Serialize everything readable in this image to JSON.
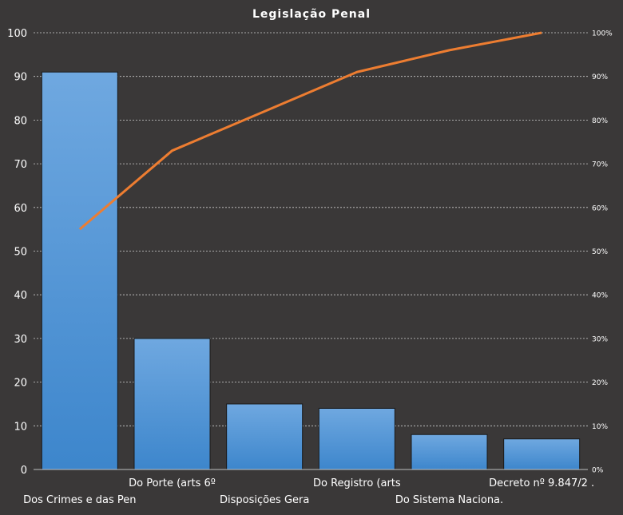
{
  "chart_data": {
    "type": "bar",
    "title": "Legislação Penal",
    "categories": [
      "Dos Crimes e das Pen",
      "Do Porte (arts 6º",
      "Disposições Gera",
      "Do Registro (arts",
      "Do Sistema Naciona.",
      "Decreto nº 9.847/2 ."
    ],
    "values": [
      91,
      30,
      15,
      14,
      8,
      7
    ],
    "ylim": [
      0,
      100
    ],
    "yticks": [
      0,
      10,
      20,
      30,
      40,
      50,
      60,
      70,
      80,
      90,
      100
    ],
    "secondary_axis": {
      "ylim": [
        0,
        100
      ],
      "ticks": [
        "0%",
        "10%",
        "20%",
        "30%",
        "40%",
        "50%",
        "60%",
        "70%",
        "80%",
        "90%",
        "100%"
      ]
    },
    "series": [
      {
        "type": "bar",
        "values": [
          91,
          30,
          15,
          14,
          8,
          7
        ]
      },
      {
        "type": "line",
        "axis": "secondary",
        "values": [
          55,
          73,
          82,
          91,
          96,
          100
        ]
      }
    ],
    "grid": true,
    "colors": {
      "background": "#3a3838",
      "bar_top": "#6fa8e0",
      "bar_bottom": "#3d86cc",
      "bar_stroke": "#1a1a1a",
      "line": "#ed7d31",
      "grid": "#d0d0d0",
      "text": "#ffffff"
    }
  }
}
